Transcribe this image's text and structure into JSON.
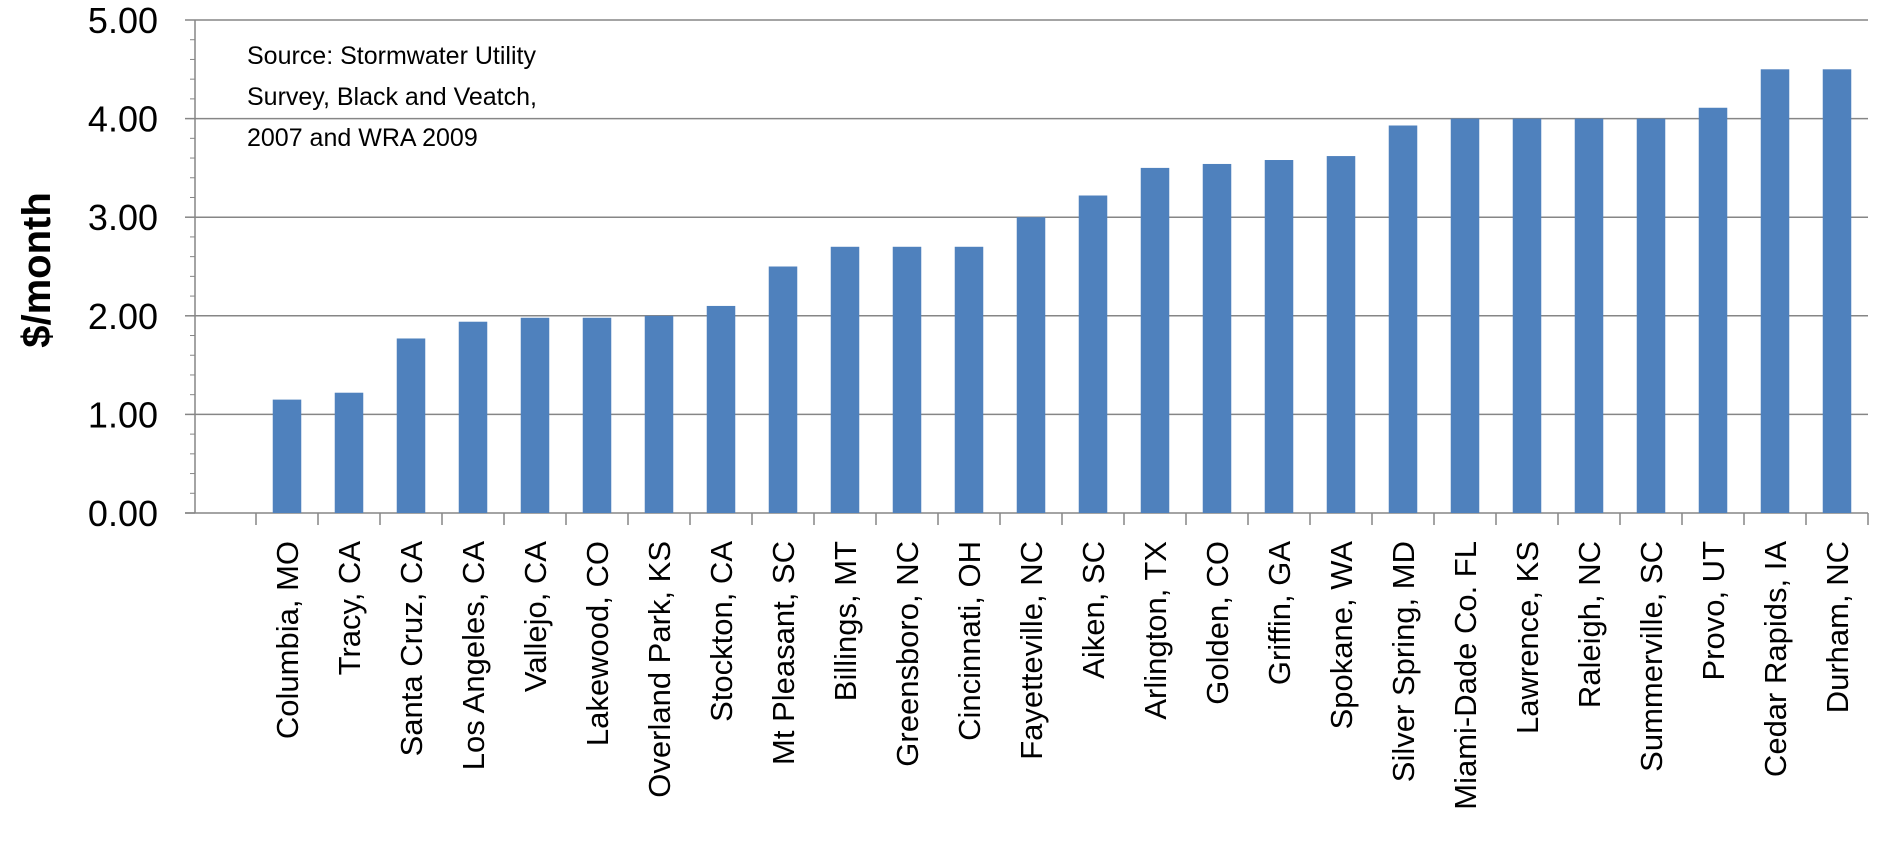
{
  "chart_data": {
    "type": "bar",
    "ylabel": "$/month",
    "ylim": [
      0,
      5
    ],
    "yticks": [
      "0.00",
      "1.00",
      "2.00",
      "3.00",
      "4.00",
      "5.00"
    ],
    "grid": true,
    "annotation": [
      "Source: Stormwater Utility",
      "Survey, Black and Veatch,",
      "2007 and WRA 2009"
    ],
    "bar_color": "#4F81BD",
    "categories": [
      "Columbia, MO",
      "Tracy, CA",
      "Santa Cruz, CA",
      "Los Angeles, CA",
      "Vallejo, CA",
      "Lakewood, CO",
      "Overland Park, KS",
      "Stockton, CA",
      "Mt Pleasant, SC",
      "Billings, MT",
      "Greensboro, NC",
      "Cincinnati, OH",
      "Fayetteville, NC",
      "Aiken, SC",
      "Arlington, TX",
      "Golden, CO",
      "Griffin, GA",
      "Spokane, WA",
      "Silver Spring, MD",
      "Miami-Dade Co. FL",
      "Lawrence, KS",
      "Raleigh, NC",
      "Summerville, SC",
      "Provo, UT",
      "Cedar Rapids, IA",
      "Durham, NC"
    ],
    "values": [
      1.15,
      1.22,
      1.77,
      1.94,
      1.98,
      1.98,
      2.0,
      2.1,
      2.5,
      2.7,
      2.7,
      2.7,
      3.0,
      3.22,
      3.5,
      3.54,
      3.58,
      3.62,
      3.93,
      4.0,
      4.0,
      4.0,
      4.0,
      4.11,
      4.5,
      4.5
    ]
  }
}
